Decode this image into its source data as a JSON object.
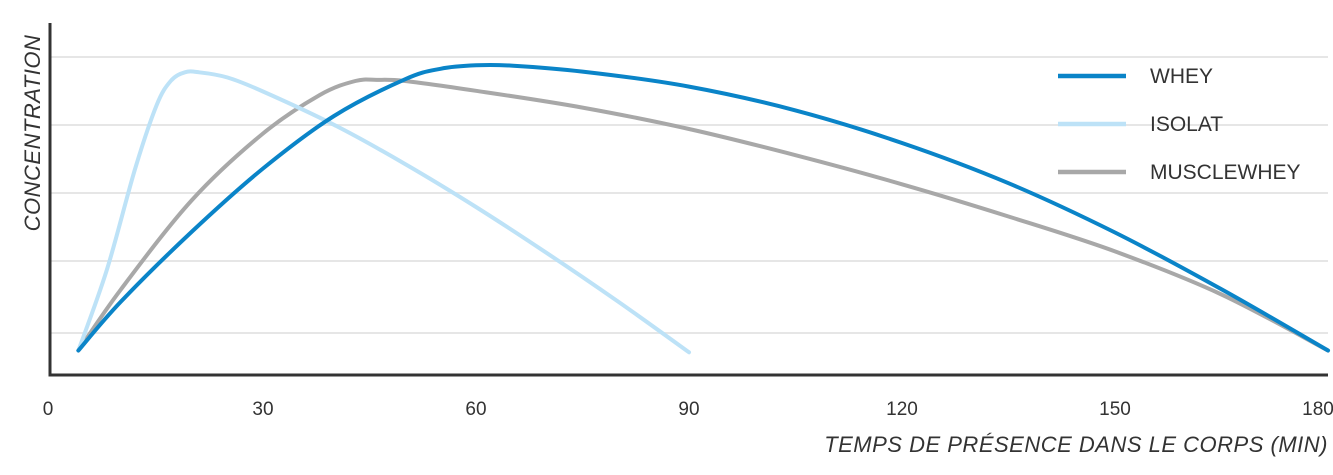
{
  "chart_data": {
    "type": "line",
    "title": "",
    "xlabel": "TEMPS DE PRÉSENCE DANS LE CORPS (MIN)",
    "ylabel": "CONCENTRATION",
    "xlim": [
      0,
      180
    ],
    "ylim": [
      0,
      100
    ],
    "x_ticks": [
      "0",
      "30",
      "60",
      "90",
      "120",
      "150",
      "180"
    ],
    "grid": true,
    "legend_position": "top-right",
    "series": [
      {
        "name": "WHEY",
        "color": "#0a84c8",
        "points": [
          [
            4,
            7
          ],
          [
            10,
            21
          ],
          [
            20,
            41
          ],
          [
            30,
            59
          ],
          [
            40,
            74
          ],
          [
            50,
            84.5
          ],
          [
            55,
            87.5
          ],
          [
            60,
            88.5
          ],
          [
            65,
            88.4
          ],
          [
            75,
            86.7
          ],
          [
            90,
            82.4
          ],
          [
            105,
            75.6
          ],
          [
            120,
            66.3
          ],
          [
            135,
            54.8
          ],
          [
            150,
            40.7
          ],
          [
            165,
            24.5
          ],
          [
            180,
            7
          ]
        ]
      },
      {
        "name": "ISOLAT",
        "color": "#bde2f7",
        "points": [
          [
            4,
            7
          ],
          [
            8,
            30
          ],
          [
            12,
            59
          ],
          [
            15,
            77
          ],
          [
            17,
            84
          ],
          [
            19,
            86.5
          ],
          [
            21,
            86.5
          ],
          [
            25,
            85
          ],
          [
            30,
            81
          ],
          [
            40,
            71.5
          ],
          [
            50,
            60.3
          ],
          [
            60,
            48
          ],
          [
            70,
            34.8
          ],
          [
            80,
            21
          ],
          [
            90,
            6.5
          ]
        ]
      },
      {
        "name": "MUSCLEWHEY",
        "color": "#a8a8a8",
        "points": [
          [
            4,
            7
          ],
          [
            10,
            24.5
          ],
          [
            20,
            50
          ],
          [
            30,
            69
          ],
          [
            38,
            80
          ],
          [
            43,
            84
          ],
          [
            46,
            84.3
          ],
          [
            50,
            84
          ],
          [
            60,
            81.2
          ],
          [
            75,
            76.4
          ],
          [
            90,
            70.3
          ],
          [
            105,
            62.8
          ],
          [
            120,
            54.5
          ],
          [
            135,
            45.3
          ],
          [
            150,
            35.3
          ],
          [
            165,
            23
          ],
          [
            180,
            7
          ]
        ]
      }
    ]
  }
}
